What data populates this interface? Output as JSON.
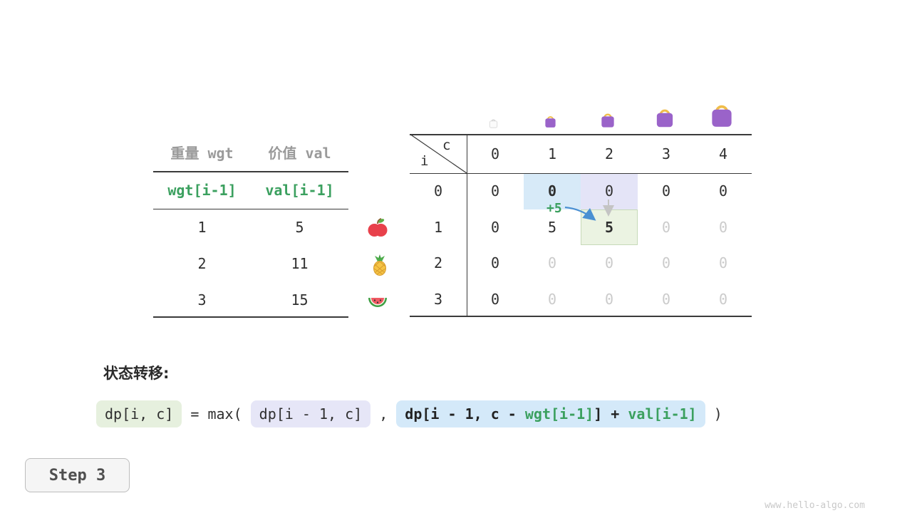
{
  "meta": {
    "watermark": "www.hello-algo.com",
    "step_label": "Step 3"
  },
  "weight_table": {
    "headers": [
      "重量 wgt",
      "价值 val"
    ],
    "formula_row": [
      "wgt[i-1]",
      "val[i-1]"
    ],
    "rows": [
      {
        "wgt": "1",
        "val": "5",
        "icon": "apple-icon"
      },
      {
        "wgt": "2",
        "val": "11",
        "icon": "pineapple-icon"
      },
      {
        "wgt": "3",
        "val": "15",
        "icon": "watermelon-icon"
      }
    ]
  },
  "dp_table": {
    "corner": {
      "top": "c",
      "bottom": "i"
    },
    "col_headers": [
      "0",
      "1",
      "2",
      "3",
      "4"
    ],
    "row_headers": [
      "0",
      "1",
      "2",
      "3"
    ],
    "cells": [
      [
        "0",
        "0",
        "0",
        "0",
        "0"
      ],
      [
        "0",
        "5",
        "5",
        "0",
        "0"
      ],
      [
        "0",
        "0",
        "0",
        "0",
        "0"
      ],
      [
        "0",
        "0",
        "0",
        "0",
        "0"
      ]
    ],
    "cell_states": [
      [
        "default",
        "bold-blue",
        "lavender",
        "default",
        "default"
      ],
      [
        "default",
        "default",
        "bold-green",
        "dim",
        "dim"
      ],
      [
        "default",
        "dim",
        "dim",
        "dim",
        "dim"
      ],
      [
        "default",
        "dim",
        "dim",
        "dim",
        "dim"
      ]
    ],
    "annotation": "+5",
    "bag_icons": [
      "bag-ghost-icon",
      "bag-small-icon",
      "bag-medium-icon",
      "bag-large-icon",
      "bag-xlarge-icon"
    ]
  },
  "transition": {
    "label": "状态转移:",
    "lhs": "dp[i, c]",
    "op": " = max( ",
    "arg1": "dp[i - 1, c]",
    "comma": " , ",
    "arg2_prefix": "dp[i - 1, c - ",
    "arg2_wgt": "wgt[i-1]",
    "arg2_mid": "] + ",
    "arg2_val": "val[i-1]",
    "close": " )"
  },
  "colors": {
    "green_text": "#3ba05f",
    "highlight_green": "#ebf3e2",
    "highlight_blue": "#d7eaf8",
    "highlight_lavender": "#e4e4f7",
    "dim_text": "#cbcbcb",
    "bag_purple": "#9a63c9",
    "bag_handle_gold": "#f0bd4a",
    "arrow_blue": "#4a90d2",
    "arrow_gray": "#c4c4c4"
  }
}
